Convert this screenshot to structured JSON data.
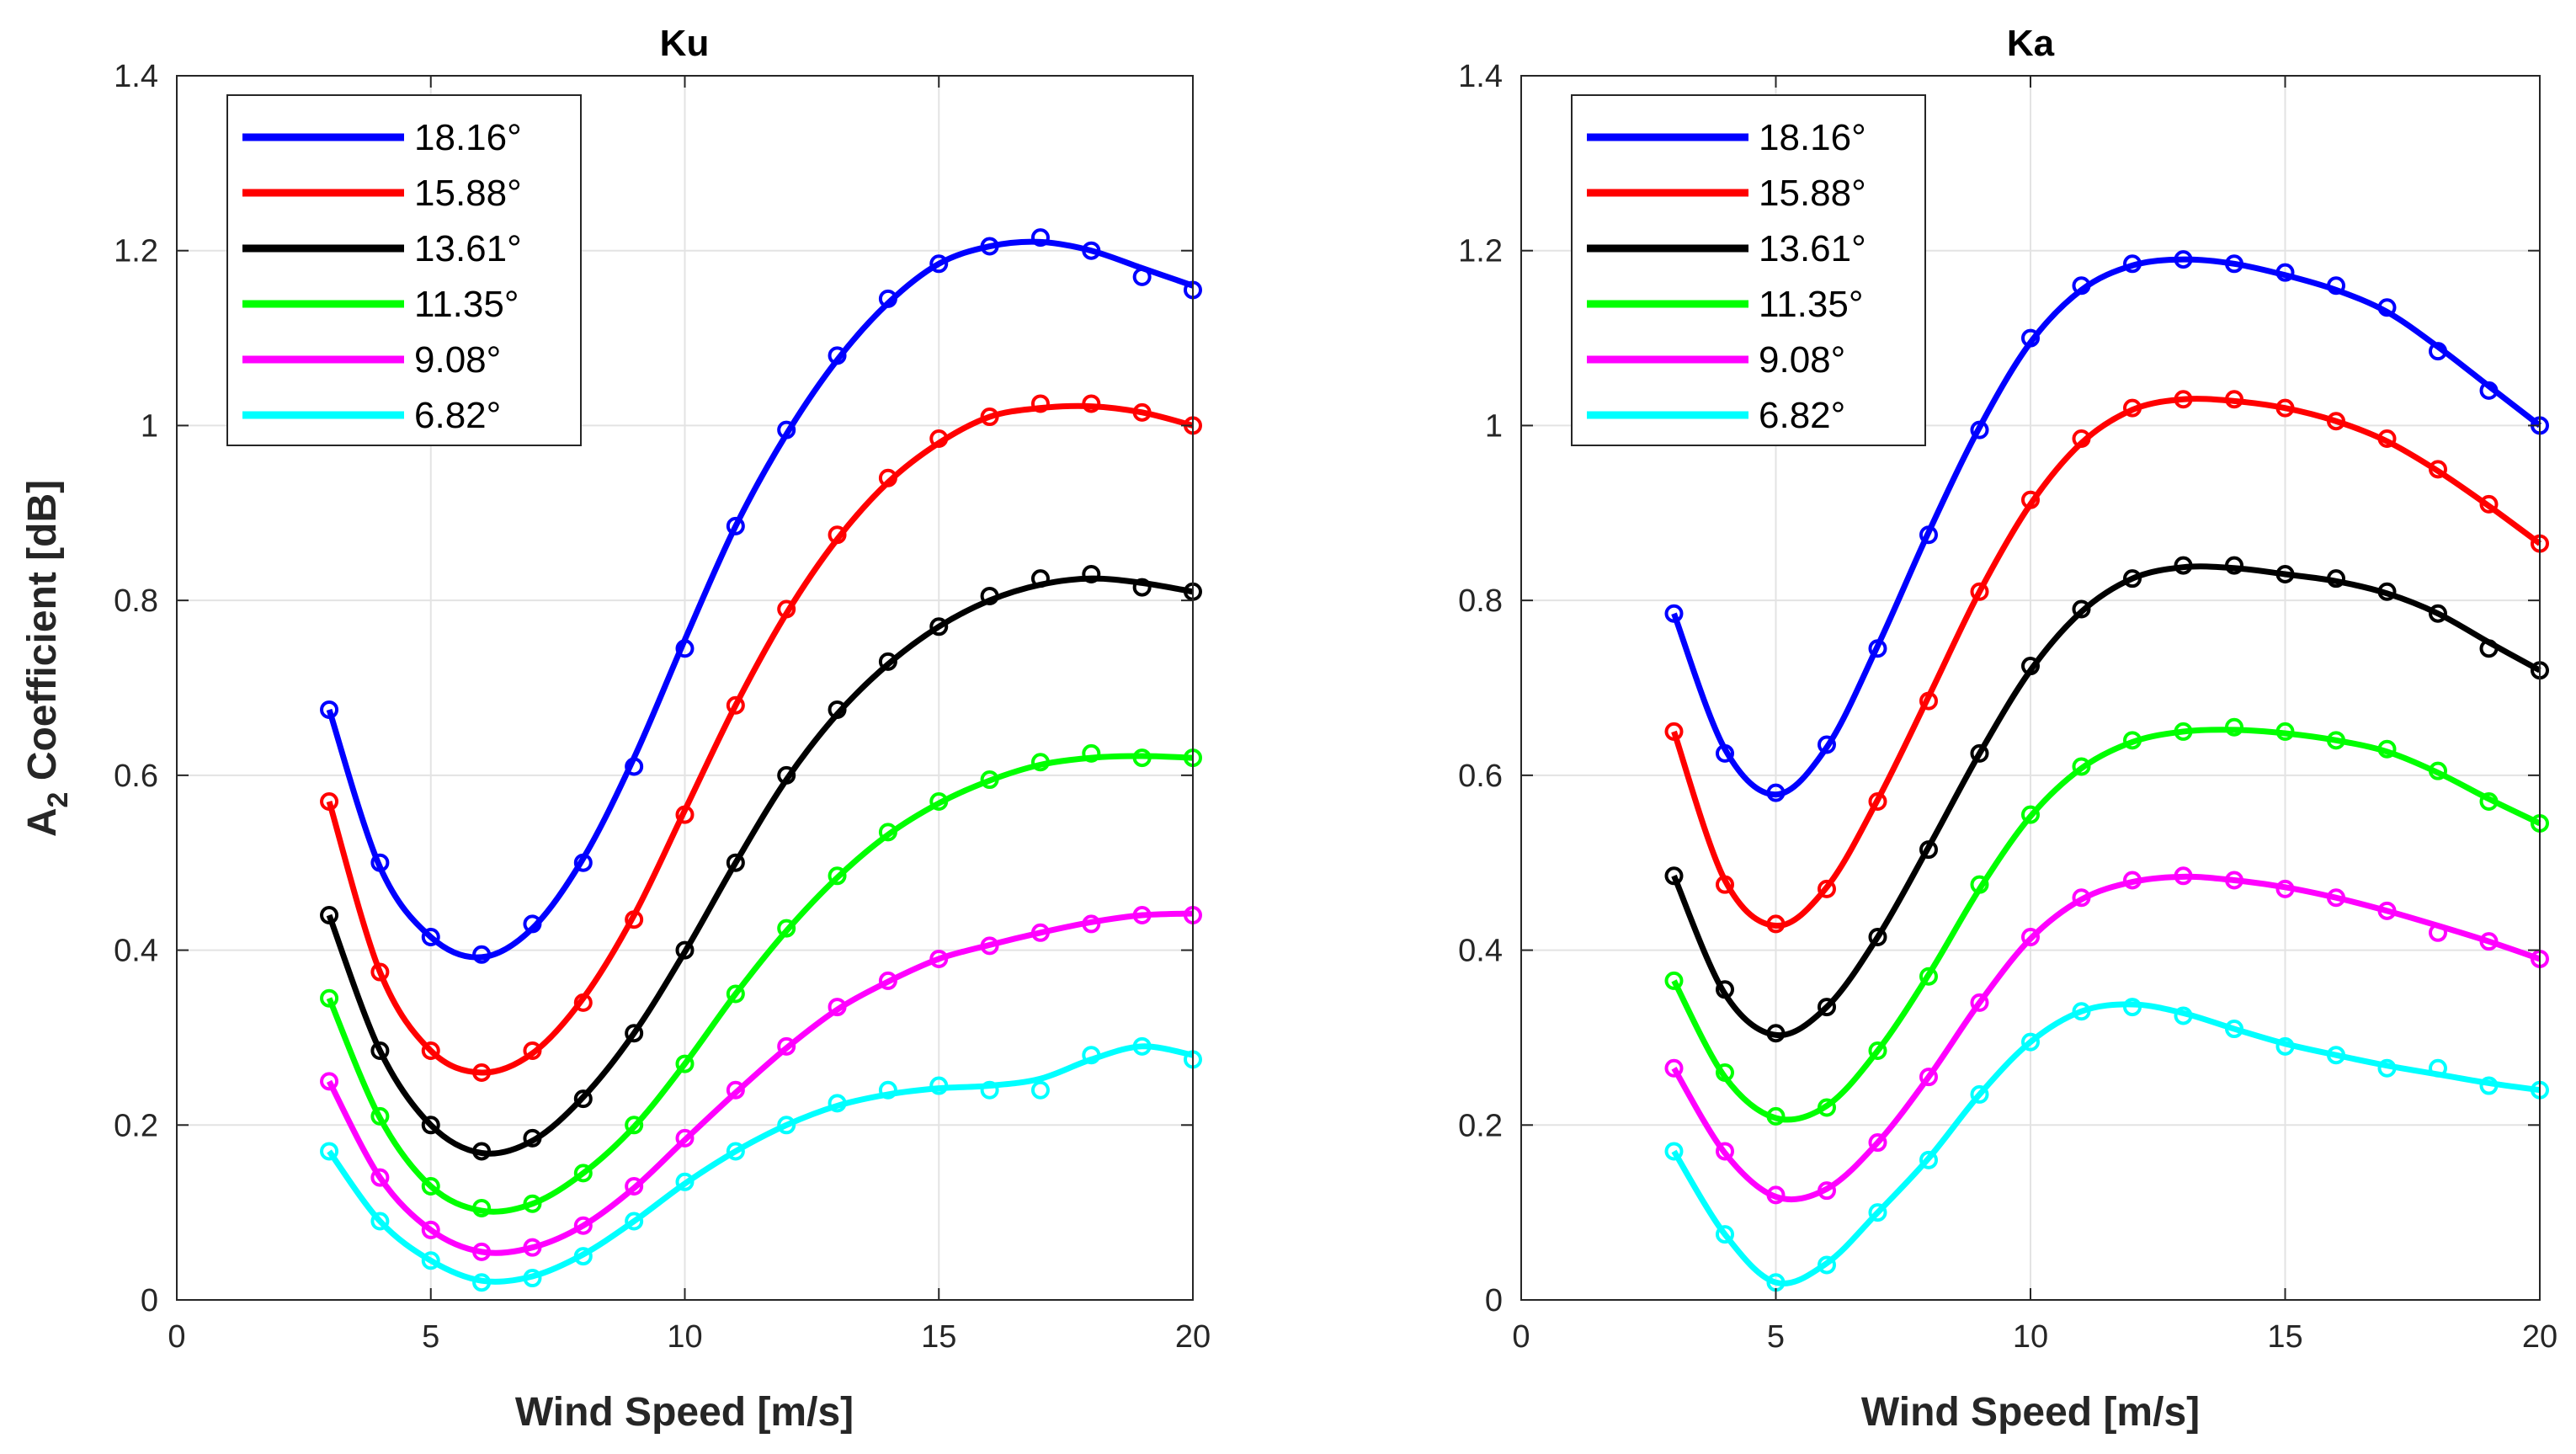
{
  "chart_data": [
    {
      "type": "line",
      "title": "Ku",
      "xlabel": "Wind Speed [m/s]",
      "ylabel_main": "A",
      "ylabel_sub": "2",
      "ylabel_rest": " Coefficient [dB]",
      "show_ylabel": true,
      "xlim": [
        0,
        20
      ],
      "ylim": [
        0,
        1.4
      ],
      "xticks": [
        0,
        5,
        10,
        15,
        20
      ],
      "xtick_labels": [
        "0",
        "5",
        "10",
        "15",
        "20"
      ],
      "yticks": [
        0,
        0.2,
        0.4,
        0.6,
        0.8,
        1,
        1.2,
        1.4
      ],
      "ytick_labels": [
        "0",
        "0.2",
        "0.4",
        "0.6",
        "0.8",
        "1",
        "1.2",
        "1.4"
      ],
      "grid": true,
      "legend_location": "top-left",
      "x": [
        3,
        4,
        5,
        6,
        7,
        8,
        9,
        10,
        11,
        12,
        13,
        14,
        15,
        16,
        17,
        18,
        19,
        20
      ],
      "series": [
        {
          "name": "18.16°",
          "color": "#0000ff",
          "markers": [
            0.675,
            0.5,
            0.415,
            0.395,
            0.43,
            0.5,
            0.61,
            0.745,
            0.885,
            0.995,
            1.08,
            1.145,
            1.185,
            1.205,
            1.215,
            1.2,
            1.17,
            1.155
          ],
          "fit": [
            0.675,
            0.495,
            0.415,
            0.392,
            0.425,
            0.505,
            0.62,
            0.755,
            0.885,
            0.99,
            1.075,
            1.14,
            1.185,
            1.205,
            1.21,
            1.2,
            1.18,
            1.16
          ]
        },
        {
          "name": "15.88°",
          "color": "#ff0000",
          "markers": [
            0.57,
            0.375,
            0.285,
            0.26,
            0.285,
            0.34,
            0.435,
            0.555,
            0.68,
            0.79,
            0.875,
            0.94,
            0.985,
            1.01,
            1.025,
            1.025,
            1.015,
            1.0
          ],
          "fit": [
            0.57,
            0.375,
            0.285,
            0.26,
            0.282,
            0.345,
            0.44,
            0.56,
            0.68,
            0.785,
            0.87,
            0.935,
            0.98,
            1.01,
            1.02,
            1.022,
            1.015,
            1.0
          ]
        },
        {
          "name": "13.61°",
          "color": "#000000",
          "markers": [
            0.44,
            0.285,
            0.2,
            0.17,
            0.185,
            0.23,
            0.305,
            0.4,
            0.5,
            0.6,
            0.675,
            0.73,
            0.77,
            0.805,
            0.825,
            0.83,
            0.815,
            0.81
          ],
          "fit": [
            0.44,
            0.285,
            0.2,
            0.168,
            0.182,
            0.232,
            0.305,
            0.398,
            0.5,
            0.595,
            0.67,
            0.727,
            0.77,
            0.8,
            0.818,
            0.825,
            0.82,
            0.81
          ]
        },
        {
          "name": "11.35°",
          "color": "#00ff00",
          "markers": [
            0.345,
            0.21,
            0.13,
            0.105,
            0.11,
            0.145,
            0.2,
            0.27,
            0.35,
            0.425,
            0.485,
            0.535,
            0.57,
            0.595,
            0.615,
            0.625,
            0.62,
            0.62
          ],
          "fit": [
            0.345,
            0.208,
            0.13,
            0.102,
            0.11,
            0.145,
            0.198,
            0.27,
            0.35,
            0.422,
            0.483,
            0.532,
            0.568,
            0.594,
            0.612,
            0.62,
            0.622,
            0.62
          ]
        },
        {
          "name": "9.08°",
          "color": "#ff00ff",
          "markers": [
            0.25,
            0.14,
            0.08,
            0.055,
            0.06,
            0.085,
            0.13,
            0.185,
            0.24,
            0.29,
            0.335,
            0.365,
            0.39,
            0.405,
            0.42,
            0.43,
            0.44,
            0.44
          ],
          "fit": [
            0.25,
            0.14,
            0.08,
            0.055,
            0.06,
            0.085,
            0.128,
            0.183,
            0.237,
            0.288,
            0.332,
            0.364,
            0.39,
            0.406,
            0.42,
            0.432,
            0.44,
            0.442
          ]
        },
        {
          "name": "6.82°",
          "color": "#00ffff",
          "markers": [
            0.17,
            0.09,
            0.045,
            0.02,
            0.025,
            0.05,
            0.09,
            0.135,
            0.17,
            0.2,
            0.225,
            0.24,
            0.245,
            0.24,
            0.24,
            0.28,
            0.29,
            0.275
          ],
          "fit": [
            0.17,
            0.09,
            0.045,
            0.022,
            0.027,
            0.052,
            0.09,
            0.133,
            0.17,
            0.2,
            0.222,
            0.235,
            0.242,
            0.245,
            0.253,
            0.275,
            0.29,
            0.28
          ]
        }
      ]
    },
    {
      "type": "line",
      "title": "Ka",
      "xlabel": "Wind Speed [m/s]",
      "ylabel_main": "",
      "ylabel_sub": "",
      "ylabel_rest": "",
      "show_ylabel": false,
      "xlim": [
        0,
        20
      ],
      "ylim": [
        0,
        1.4
      ],
      "xticks": [
        0,
        5,
        10,
        15,
        20
      ],
      "xtick_labels": [
        "0",
        "5",
        "10",
        "15",
        "20"
      ],
      "yticks": [
        0,
        0.2,
        0.4,
        0.6,
        0.8,
        1,
        1.2,
        1.4
      ],
      "ytick_labels": [
        "0",
        "0.2",
        "0.4",
        "0.6",
        "0.8",
        "1",
        "1.2",
        "1.4"
      ],
      "grid": true,
      "legend_location": "top-left",
      "x": [
        3,
        4,
        5,
        6,
        7,
        8,
        9,
        10,
        11,
        12,
        13,
        14,
        15,
        16,
        17,
        18,
        19,
        20
      ],
      "series": [
        {
          "name": "18.16°",
          "color": "#0000ff",
          "markers": [
            0.785,
            0.625,
            0.58,
            0.635,
            0.745,
            0.875,
            0.995,
            1.1,
            1.16,
            1.185,
            1.19,
            1.185,
            1.175,
            1.16,
            1.135,
            1.085,
            1.04,
            1.0
          ],
          "fit": [
            0.785,
            0.63,
            0.578,
            0.632,
            0.748,
            0.878,
            0.998,
            1.095,
            1.155,
            1.183,
            1.19,
            1.185,
            1.172,
            1.155,
            1.13,
            1.09,
            1.045,
            1.0
          ]
        },
        {
          "name": "15.88°",
          "color": "#ff0000",
          "markers": [
            0.65,
            0.475,
            0.43,
            0.47,
            0.57,
            0.685,
            0.81,
            0.915,
            0.985,
            1.02,
            1.03,
            1.03,
            1.02,
            1.005,
            0.985,
            0.95,
            0.91,
            0.865
          ],
          "fit": [
            0.65,
            0.48,
            0.428,
            0.472,
            0.572,
            0.69,
            0.81,
            0.91,
            0.98,
            1.018,
            1.03,
            1.028,
            1.02,
            1.005,
            0.982,
            0.948,
            0.908,
            0.865
          ]
        },
        {
          "name": "13.61°",
          "color": "#000000",
          "markers": [
            0.485,
            0.355,
            0.305,
            0.335,
            0.415,
            0.515,
            0.625,
            0.725,
            0.79,
            0.825,
            0.84,
            0.84,
            0.83,
            0.825,
            0.81,
            0.785,
            0.745,
            0.72
          ],
          "fit": [
            0.485,
            0.35,
            0.303,
            0.335,
            0.415,
            0.518,
            0.625,
            0.72,
            0.787,
            0.825,
            0.838,
            0.837,
            0.83,
            0.822,
            0.808,
            0.785,
            0.752,
            0.72
          ]
        },
        {
          "name": "11.35°",
          "color": "#00ff00",
          "markers": [
            0.365,
            0.26,
            0.21,
            0.22,
            0.285,
            0.37,
            0.475,
            0.555,
            0.61,
            0.64,
            0.65,
            0.655,
            0.65,
            0.64,
            0.63,
            0.605,
            0.57,
            0.545
          ],
          "fit": [
            0.365,
            0.255,
            0.208,
            0.222,
            0.285,
            0.372,
            0.47,
            0.553,
            0.608,
            0.638,
            0.65,
            0.652,
            0.648,
            0.64,
            0.627,
            0.603,
            0.573,
            0.545
          ]
        },
        {
          "name": "9.08°",
          "color": "#ff00ff",
          "markers": [
            0.265,
            0.17,
            0.12,
            0.125,
            0.18,
            0.255,
            0.34,
            0.415,
            0.46,
            0.48,
            0.485,
            0.48,
            0.47,
            0.46,
            0.445,
            0.42,
            0.41,
            0.39
          ],
          "fit": [
            0.265,
            0.168,
            0.118,
            0.127,
            0.18,
            0.255,
            0.34,
            0.413,
            0.458,
            0.478,
            0.484,
            0.48,
            0.472,
            0.46,
            0.445,
            0.428,
            0.41,
            0.39
          ]
        },
        {
          "name": "6.82°",
          "color": "#00ffff",
          "markers": [
            0.17,
            0.075,
            0.02,
            0.04,
            0.1,
            0.16,
            0.235,
            0.295,
            0.33,
            0.335,
            0.325,
            0.31,
            0.29,
            0.28,
            0.265,
            0.265,
            0.245,
            0.24
          ],
          "fit": [
            0.17,
            0.075,
            0.02,
            0.042,
            0.1,
            0.162,
            0.235,
            0.295,
            0.33,
            0.338,
            0.328,
            0.31,
            0.293,
            0.28,
            0.268,
            0.258,
            0.248,
            0.24
          ]
        }
      ]
    }
  ]
}
